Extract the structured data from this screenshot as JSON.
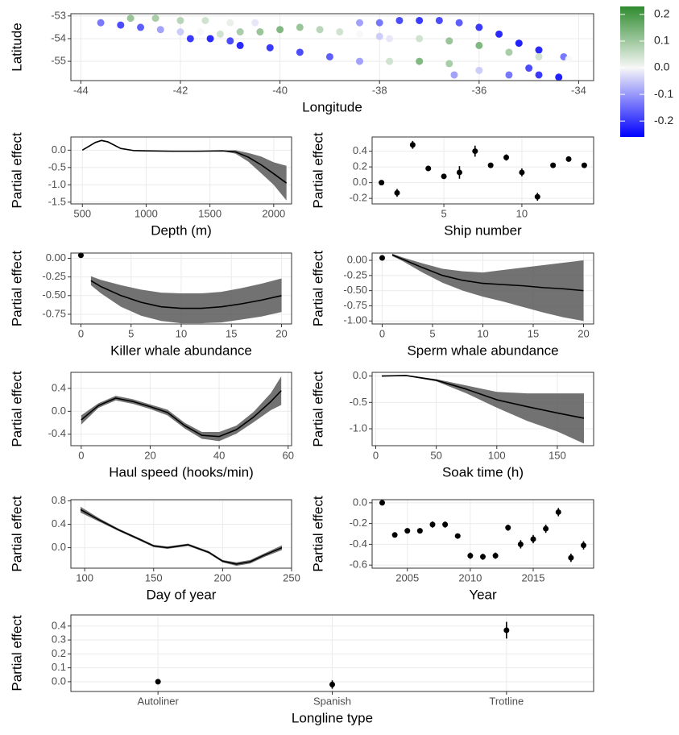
{
  "chart_data": [
    {
      "type": "scatter",
      "x_label": "Longitude",
      "y_label": "Latitude",
      "grid": true,
      "xlim": [
        -44.2,
        -33.7
      ],
      "ylim": [
        -55.85,
        -52.9
      ],
      "xticks": [
        -44,
        -42,
        -40,
        -38,
        -36,
        -34
      ],
      "yticks": [
        -55,
        -54,
        -53
      ],
      "x": [
        -43.6,
        -43.2,
        -42.8,
        -42.4,
        -42.0,
        -41.6,
        -41.2,
        -40.8,
        -40.4,
        -40.0,
        -39.6,
        -39.2,
        -38.8,
        -38.4,
        -38.0,
        -43.0,
        -42.5,
        -42.0,
        -41.5,
        -41.0,
        -40.5,
        -41.8,
        -41.4,
        -41.0,
        -38.4,
        -38.0,
        -37.6,
        -37.2,
        -36.8,
        -36.4,
        -36.0,
        -35.6,
        -35.2,
        -34.8,
        -34.3,
        -34.2,
        -34.8,
        -35.4,
        -36.0,
        -36.6,
        -37.2,
        -37.8,
        -40.8,
        -40.2,
        -39.6,
        -39.0,
        -38.4,
        -37.8,
        -37.2,
        -36.6,
        -36.0,
        -35.4,
        -34.8,
        -34.4,
        -36.5,
        -35.0
      ],
      "y": [
        -53.3,
        -53.4,
        -53.5,
        -53.6,
        -53.7,
        -53.7,
        -53.8,
        -53.7,
        -53.7,
        -53.6,
        -53.5,
        -53.6,
        -53.7,
        -53.8,
        -53.9,
        -53.1,
        -53.1,
        -53.2,
        -53.2,
        -53.3,
        -53.3,
        -54.0,
        -54.0,
        -54.1,
        -53.3,
        -53.3,
        -53.2,
        -53.2,
        -53.2,
        -53.3,
        -53.5,
        -53.8,
        -54.2,
        -54.5,
        -54.8,
        -54.9,
        -54.8,
        -54.6,
        -54.3,
        -54.1,
        -54.0,
        -54.0,
        -54.3,
        -54.4,
        -54.6,
        -54.8,
        -55.0,
        -55.0,
        -55.0,
        -55.1,
        -55.4,
        -55.6,
        -55.6,
        -55.7,
        -55.6,
        -55.3
      ],
      "values": [
        -0.15,
        -0.2,
        -0.18,
        -0.1,
        -0.05,
        0.0,
        0.05,
        0.1,
        0.12,
        0.15,
        0.12,
        0.08,
        0.05,
        0.0,
        -0.05,
        0.12,
        0.1,
        0.08,
        0.05,
        0.02,
        -0.02,
        -0.22,
        -0.24,
        -0.2,
        -0.1,
        -0.15,
        -0.2,
        -0.22,
        -0.2,
        -0.18,
        -0.22,
        -0.24,
        -0.25,
        -0.24,
        -0.15,
        0.0,
        0.05,
        0.1,
        0.15,
        0.12,
        0.05,
        -0.02,
        -0.24,
        -0.22,
        -0.2,
        -0.18,
        -0.1,
        0.05,
        0.15,
        0.1,
        -0.05,
        -0.15,
        -0.22,
        -0.25,
        -0.1,
        -0.2
      ],
      "colorbar": {
        "lim": [
          -0.26,
          0.23
        ],
        "ticks": [
          0.2,
          0.1,
          {
            "value": 0,
            "label": "0.0"
          },
          -0.1,
          -0.2
        ],
        "low": "#0000ff",
        "mid": "#f7f7f7",
        "high": "#2e8b2e"
      }
    },
    {
      "type": "line",
      "x_label": "Depth (m)",
      "y_label": "Partial effect",
      "grid": true,
      "xlim": [
        410,
        2140
      ],
      "ylim": [
        -1.55,
        0.38
      ],
      "xticks": [
        500,
        1000,
        1500,
        2000
      ],
      "yticks": [
        {
          "value": 0,
          "label": "0.0"
        },
        -0.5,
        {
          "value": -1,
          "label": "-1.0"
        },
        -1.5
      ],
      "x": [
        500,
        600,
        650,
        700,
        800,
        900,
        1000,
        1200,
        1400,
        1600,
        1700,
        1800,
        1900,
        2000,
        2100
      ],
      "values": [
        0,
        0.22,
        0.28,
        0.24,
        0.05,
        -0.01,
        -0.02,
        -0.03,
        -0.03,
        -0.02,
        -0.05,
        -0.2,
        -0.42,
        -0.68,
        -0.95
      ],
      "lower": [
        0,
        0.2,
        0.26,
        0.22,
        0.04,
        -0.02,
        -0.03,
        -0.04,
        -0.04,
        -0.03,
        -0.1,
        -0.33,
        -0.66,
        -1.0,
        -1.45
      ],
      "upper": [
        0,
        0.24,
        0.3,
        0.26,
        0.06,
        0,
        -0.01,
        -0.02,
        -0.02,
        -0.01,
        0,
        -0.08,
        -0.18,
        -0.35,
        -0.45
      ]
    },
    {
      "type": "point",
      "x_label": "Ship number",
      "y_label": "Partial effect",
      "grid": true,
      "xlim": [
        0.4,
        14.6
      ],
      "ylim": [
        -0.27,
        0.58
      ],
      "xticks": [
        5,
        10
      ],
      "yticks": [
        -0.2,
        {
          "value": 0,
          "label": "0.0"
        },
        0.2,
        0.4
      ],
      "x": [
        1,
        2,
        3,
        4,
        5,
        6,
        7,
        8,
        9,
        10,
        11,
        12,
        13,
        14
      ],
      "values": [
        0.0,
        -0.13,
        0.48,
        0.18,
        0.08,
        0.13,
        0.4,
        0.22,
        0.32,
        0.13,
        -0.18,
        0.22,
        0.3,
        0.22
      ],
      "errors": [
        0.02,
        0.05,
        0.05,
        0.03,
        0.03,
        0.08,
        0.07,
        0.03,
        0.04,
        0.05,
        0.05,
        0.03,
        0.03,
        0.03
      ]
    },
    {
      "type": "line",
      "x_label": "Killer whale abundance",
      "y_label": "Partial effect",
      "grid": true,
      "xlim": [
        -1,
        21
      ],
      "ylim": [
        -0.88,
        0.07
      ],
      "xticks": [
        0,
        5,
        10,
        15,
        20
      ],
      "yticks": [
        {
          "value": 0,
          "label": "0.00"
        },
        -0.25,
        {
          "value": -0.5,
          "label": "-0.50"
        },
        -0.75
      ],
      "point": {
        "x": 0,
        "value": 0.04
      },
      "x": [
        1,
        2,
        4,
        6,
        8,
        10,
        12,
        14,
        16,
        18,
        20
      ],
      "values": [
        -0.3,
        -0.38,
        -0.5,
        -0.59,
        -0.65,
        -0.67,
        -0.67,
        -0.65,
        -0.61,
        -0.56,
        -0.5
      ],
      "lower": [
        -0.36,
        -0.47,
        -0.65,
        -0.77,
        -0.84,
        -0.87,
        -0.87,
        -0.86,
        -0.82,
        -0.78,
        -0.72
      ],
      "upper": [
        -0.24,
        -0.29,
        -0.36,
        -0.42,
        -0.46,
        -0.47,
        -0.47,
        -0.45,
        -0.4,
        -0.34,
        -0.27
      ]
    },
    {
      "type": "line",
      "x_label": "Sperm whale abundance",
      "y_label": "Partial effect",
      "grid": true,
      "xlim": [
        -1,
        21
      ],
      "ylim": [
        -1.05,
        0.12
      ],
      "xticks": [
        0,
        5,
        10,
        15,
        20
      ],
      "yticks": [
        {
          "value": 0,
          "label": "0.00"
        },
        -0.25,
        {
          "value": -0.5,
          "label": "-0.50"
        },
        -0.75,
        {
          "value": -1,
          "label": "-1.00"
        }
      ],
      "point": {
        "x": 0,
        "value": 0.04
      },
      "x": [
        1,
        2,
        4,
        6,
        8,
        10,
        12,
        14,
        16,
        18,
        20
      ],
      "values": [
        0.09,
        0.02,
        -0.12,
        -0.25,
        -0.33,
        -0.38,
        -0.4,
        -0.42,
        -0.45,
        -0.47,
        -0.5
      ],
      "lower": [
        0.07,
        -0.01,
        -0.2,
        -0.37,
        -0.5,
        -0.6,
        -0.68,
        -0.77,
        -0.86,
        -0.94,
        -1.0
      ],
      "upper": [
        0.11,
        0.05,
        -0.05,
        -0.14,
        -0.18,
        -0.2,
        -0.16,
        -0.12,
        -0.08,
        -0.04,
        0.0
      ]
    },
    {
      "type": "line",
      "x_label": "Haul speed (hooks/min)",
      "y_label": "Partial effect",
      "grid": true,
      "xlim": [
        -3,
        61
      ],
      "ylim": [
        -0.6,
        0.68
      ],
      "xticks": [
        0,
        20,
        40,
        60
      ],
      "yticks": [
        -0.4,
        {
          "value": 0,
          "label": "0.0"
        },
        0.4
      ],
      "x": [
        0,
        5,
        10,
        15,
        20,
        25,
        30,
        35,
        40,
        45,
        50,
        55,
        58
      ],
      "values": [
        -0.15,
        0.1,
        0.23,
        0.17,
        0.08,
        -0.02,
        -0.25,
        -0.42,
        -0.44,
        -0.32,
        -0.1,
        0.17,
        0.36
      ],
      "lower": [
        -0.23,
        0.06,
        0.19,
        0.13,
        0.04,
        -0.07,
        -0.3,
        -0.48,
        -0.52,
        -0.39,
        -0.19,
        0.02,
        0.11
      ],
      "upper": [
        -0.07,
        0.14,
        0.27,
        0.21,
        0.12,
        0.03,
        -0.2,
        -0.36,
        -0.36,
        -0.25,
        -0.01,
        0.32,
        0.61
      ]
    },
    {
      "type": "line",
      "x_label": "Soak time (h)",
      "y_label": "Partial effect",
      "grid": true,
      "xlim": [
        -3,
        180
      ],
      "ylim": [
        -1.32,
        0.07
      ],
      "xticks": [
        0,
        50,
        100,
        150
      ],
      "yticks": [
        {
          "value": 0,
          "label": "0.0"
        },
        -0.5,
        {
          "value": -1,
          "label": "-1.0"
        }
      ],
      "x": [
        5,
        25,
        50,
        75,
        100,
        125,
        150,
        172
      ],
      "values": [
        0,
        0.01,
        -0.08,
        -0.25,
        -0.45,
        -0.58,
        -0.7,
        -0.8
      ],
      "lower": [
        -0.01,
        0,
        -0.1,
        -0.33,
        -0.6,
        -0.85,
        -1.05,
        -1.28
      ],
      "upper": [
        0.01,
        0.02,
        -0.06,
        -0.18,
        -0.3,
        -0.33,
        -0.33,
        -0.33
      ]
    },
    {
      "type": "line",
      "x_label": "Day of year",
      "y_label": "Partial effect",
      "grid": true,
      "xlim": [
        90,
        250
      ],
      "ylim": [
        -0.35,
        0.82
      ],
      "xticks": [
        100,
        150,
        200,
        250
      ],
      "yticks": [
        {
          "value": 0,
          "label": "0.0"
        },
        0.4,
        0.8
      ],
      "x": [
        97,
        110,
        125,
        140,
        150,
        160,
        175,
        190,
        200,
        210,
        220,
        230,
        243
      ],
      "values": [
        0.65,
        0.48,
        0.3,
        0.14,
        0.03,
        0.0,
        0.05,
        -0.08,
        -0.23,
        -0.28,
        -0.24,
        -0.13,
        0.0
      ],
      "lower": [
        0.6,
        0.45,
        0.28,
        0.12,
        0.01,
        -0.02,
        0.03,
        -0.1,
        -0.25,
        -0.31,
        -0.27,
        -0.16,
        -0.04
      ],
      "upper": [
        0.7,
        0.51,
        0.32,
        0.16,
        0.05,
        0.02,
        0.07,
        -0.06,
        -0.21,
        -0.25,
        -0.21,
        -0.1,
        0.04
      ]
    },
    {
      "type": "point",
      "x_label": "Year",
      "y_label": "Partial effect",
      "grid": true,
      "xlim": [
        2002.2,
        2019.8
      ],
      "ylim": [
        -0.63,
        0.03
      ],
      "xticks": [
        2005,
        2010,
        2015
      ],
      "yticks": [
        {
          "value": 0,
          "label": "0.0"
        },
        -0.2,
        -0.4,
        -0.6
      ],
      "x": [
        2003,
        2004,
        2005,
        2006,
        2007,
        2008,
        2009,
        2010,
        2011,
        2012,
        2013,
        2014,
        2015,
        2016,
        2017,
        2018,
        2019
      ],
      "values": [
        0,
        -0.31,
        -0.27,
        -0.27,
        -0.21,
        -0.21,
        -0.32,
        -0.51,
        -0.52,
        -0.51,
        -0.24,
        -0.4,
        -0.35,
        -0.25,
        -0.09,
        -0.53,
        -0.41
      ],
      "errors": [
        0.01,
        0.02,
        0.02,
        0.02,
        0.03,
        0.03,
        0.02,
        0.03,
        0.03,
        0.03,
        0.03,
        0.04,
        0.04,
        0.04,
        0.04,
        0.04,
        0.04
      ]
    },
    {
      "type": "point",
      "x_label": "Longline type",
      "y_label": "Partial effect",
      "grid": true,
      "ylim": [
        -0.07,
        0.48
      ],
      "yticks": [
        {
          "value": 0,
          "label": "0.0"
        },
        0.1,
        0.2,
        0.3,
        0.4
      ],
      "categories": [
        "Autoliner",
        "Spanish",
        "Trotline"
      ],
      "values": [
        0.0,
        -0.02,
        0.37
      ],
      "errors": [
        0.01,
        0.03,
        0.06
      ]
    }
  ]
}
